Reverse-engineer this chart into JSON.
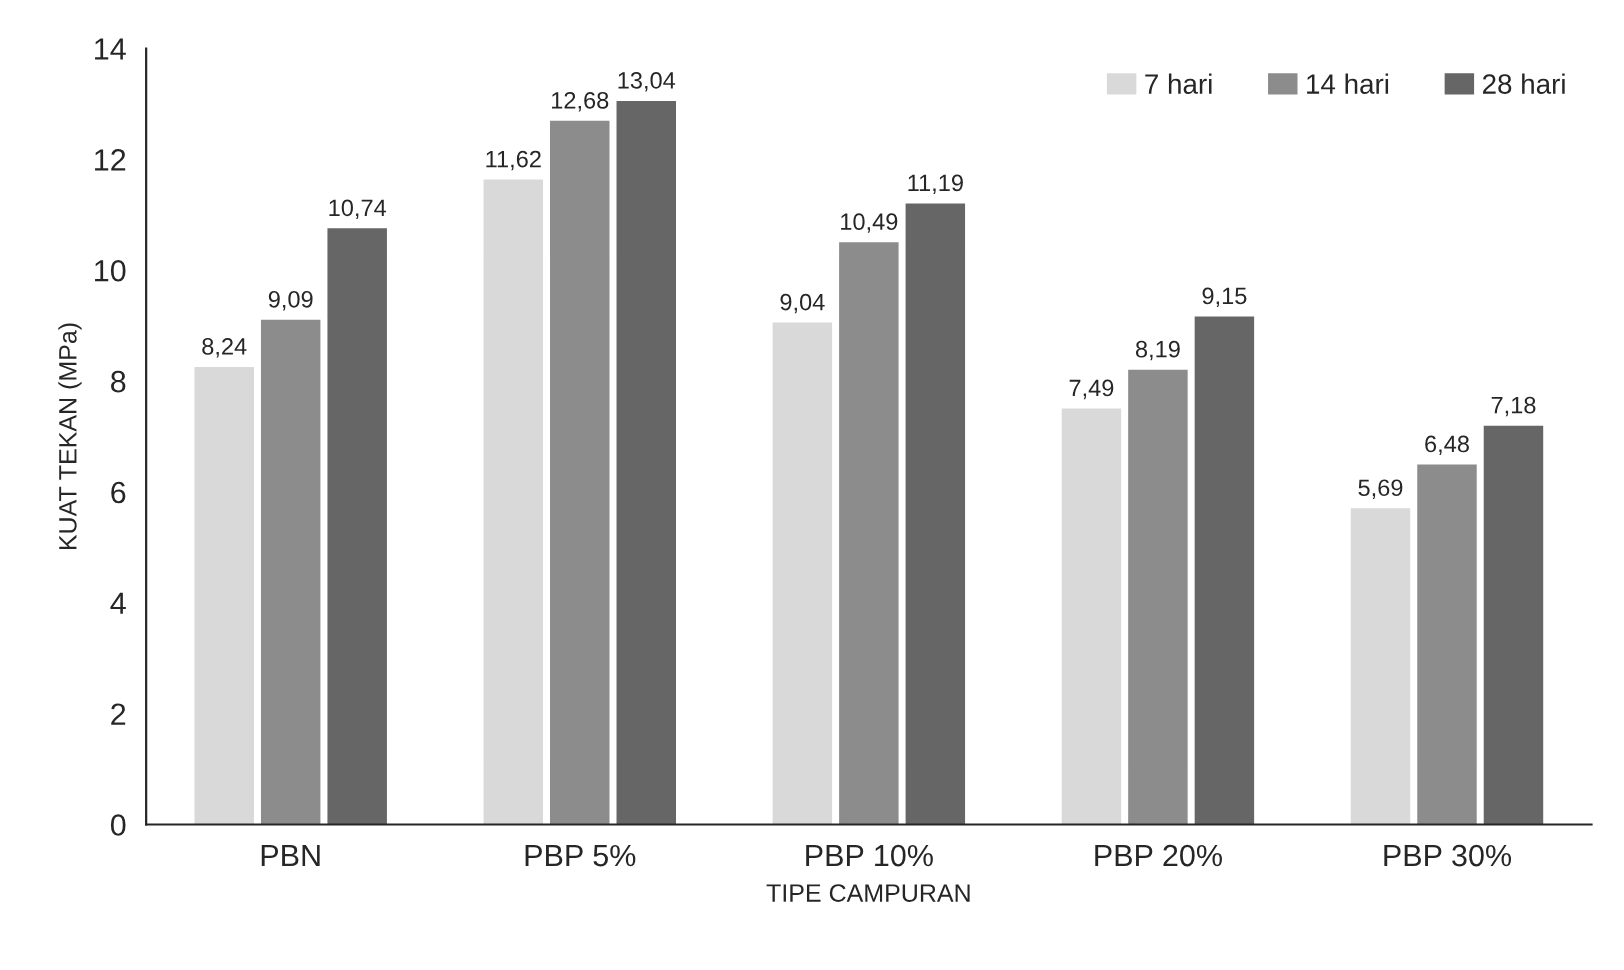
{
  "chart_data": {
    "type": "bar",
    "xlabel": "TIPE CAMPURAN",
    "ylabel": "KUAT TEKAN (MPa)",
    "categories": [
      "PBN",
      "PBP 5%",
      "PBP 10%",
      "PBP 20%",
      "PBP 30%"
    ],
    "series": [
      {
        "name": "7 hari",
        "color": "#d9d9d9",
        "values": [
          8.24,
          11.62,
          9.04,
          7.49,
          5.69
        ],
        "value_labels": [
          "8,24",
          "11,62",
          "9,04",
          "7,49",
          "5,69"
        ]
      },
      {
        "name": "14 hari",
        "color": "#8c8c8c",
        "values": [
          9.09,
          12.68,
          10.49,
          8.19,
          6.48
        ],
        "value_labels": [
          "9,09",
          "12,68",
          "10,49",
          "8,19",
          "6,48"
        ]
      },
      {
        "name": "28 hari",
        "color": "#666666",
        "values": [
          10.74,
          13.04,
          11.19,
          9.15,
          7.18
        ],
        "value_labels": [
          "10,74",
          "13,04",
          "11,19",
          "9,15",
          "7,18"
        ]
      }
    ],
    "ylim": [
      0,
      14
    ],
    "yticks": [
      0,
      2,
      4,
      6,
      8,
      10,
      12,
      14
    ],
    "legend": "top right"
  }
}
